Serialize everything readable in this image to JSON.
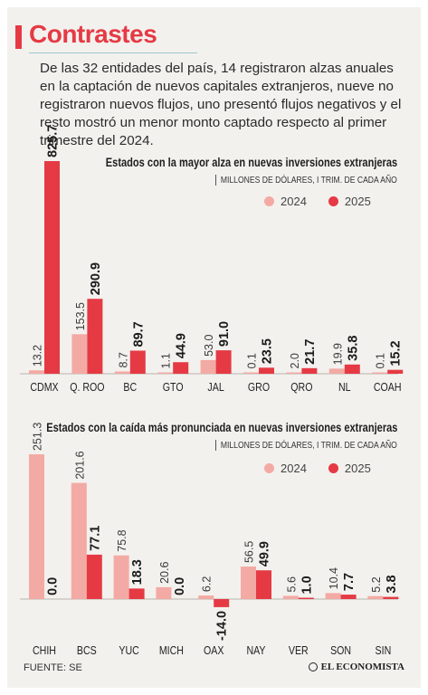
{
  "header": {
    "title": "Contrastes",
    "intro": "De las 32 entidades del país, 14 registraron alzas anuales en la captación de nuevos capitales extranjeros, nueve no registraron nuevos flujos, uno presentó flujos negativos y el resto mostró un menor monto captado respecto al primer trimestre del 2024."
  },
  "colors": {
    "accent": "#e53a44",
    "series_2024": "#f3aaa4",
    "series_2025": "#e53a44",
    "background": "#f3f1ee"
  },
  "chart_data": [
    {
      "type": "bar",
      "title": "Estados con la mayor alza en nuevas inversiones extranjeras",
      "subtitle": "MILLONES DE DÓLARES, I TRIM. DE CADA AÑO",
      "categories": [
        "CDMX",
        "Q. ROO",
        "BC",
        "GTO",
        "JAL",
        "GRO",
        "QRO",
        "NL",
        "COAH"
      ],
      "series": [
        {
          "name": "2024",
          "values": [
            13.2,
            153.5,
            8.7,
            1.1,
            53.0,
            0.1,
            2.0,
            19.9,
            0.1
          ],
          "labels": [
            "13.2",
            "153.5",
            "8.7",
            "1.1",
            "53.0",
            "0.1",
            "2.0",
            "19.9",
            "0.1"
          ]
        },
        {
          "name": "2025",
          "values": [
            825.7,
            290.9,
            89.7,
            44.9,
            91.0,
            23.5,
            21.7,
            35.8,
            15.2
          ],
          "labels": [
            "825.7",
            "290.9",
            "89.7",
            "44.9",
            "91.0",
            "23.5",
            "21.7",
            "35.8",
            "15.2"
          ]
        }
      ],
      "ylim": [
        0,
        825.7
      ],
      "legend": "top-right"
    },
    {
      "type": "bar",
      "title": "Estados con la caída más pronunciada en nuevas inversiones extranjeras",
      "subtitle": "MILLONES DE DÓLARES, I TRIM. DE CADA AÑO",
      "categories": [
        "CHIH",
        "BCS",
        "YUC",
        "MICH",
        "OAX",
        "NAY",
        "VER",
        "SON",
        "SIN"
      ],
      "series": [
        {
          "name": "2024",
          "values": [
            251.3,
            201.6,
            75.8,
            20.6,
            6.2,
            56.5,
            5.6,
            10.4,
            5.2
          ],
          "labels": [
            "251.3",
            "201.6",
            "75.8",
            "20.6",
            "6.2",
            "56.5",
            "5.6",
            "10.4",
            "5.2"
          ]
        },
        {
          "name": "2025",
          "values": [
            0.0,
            77.1,
            18.3,
            0.0,
            -14.0,
            49.9,
            1.0,
            7.7,
            3.8
          ],
          "labels": [
            "0.0",
            "77.1",
            "18.3",
            "0.0",
            "-14.0",
            "49.9",
            "1.0",
            "7.7",
            "3.8"
          ]
        }
      ],
      "ylim": [
        -14.0,
        251.3
      ],
      "legend": "top-right"
    }
  ],
  "footer": {
    "source": "FUENTE: SE",
    "brand": "EL ECONOMISTA"
  }
}
